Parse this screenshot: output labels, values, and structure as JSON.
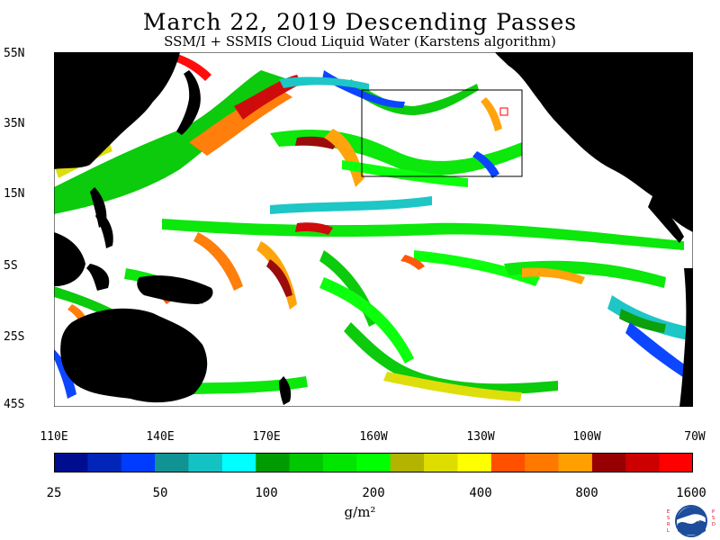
{
  "header": {
    "title": "March 22, 2019  Descending Passes",
    "subtitle": "SSM/I + SSMIS Cloud Liquid Water (Karstens algorithm)"
  },
  "axes": {
    "latitude_labels": [
      "55N",
      "35N",
      "15N",
      "5S",
      "25S",
      "45S"
    ],
    "longitude_labels": [
      "110E",
      "140E",
      "170E",
      "160W",
      "130W",
      "100W",
      "70W"
    ]
  },
  "colorbar": {
    "colors": [
      "#000d8f",
      "#0025b8",
      "#003cff",
      "#129393",
      "#13c3c3",
      "#00ffff",
      "#009b00",
      "#00c800",
      "#00e600",
      "#00ff00",
      "#b3b300",
      "#dddd00",
      "#ffff00",
      "#ff5000",
      "#ff7800",
      "#ffa000",
      "#960000",
      "#cd0000",
      "#ff0000"
    ],
    "tick_labels": [
      "25",
      "50",
      "100",
      "200",
      "400",
      "800",
      "1600"
    ],
    "units": "g/m²"
  },
  "logo": {
    "left_letters": "ESRL",
    "right_letters": "PSD",
    "emblem_text": "NOAA"
  }
}
